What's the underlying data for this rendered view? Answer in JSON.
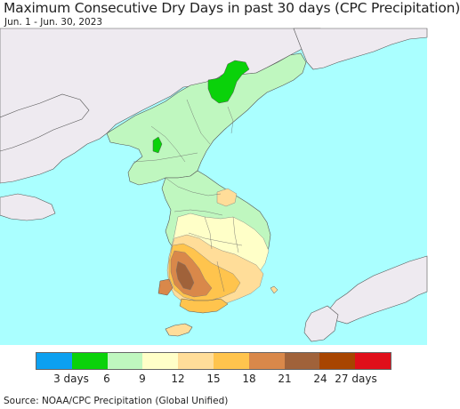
{
  "title": "Maximum Consecutive Dry Days in past 30 days (CPC Precipitation)",
  "subtitle": "Jun. 1 - Jun. 30, 2023",
  "source": "Source: NOAA/CPC Precipitation (Global Unified)",
  "colors": {
    "sea": "#aaffff",
    "neighbor_land": "#eeeaf0",
    "border": "#555555"
  },
  "legend": {
    "colors": [
      "#0ca0f0",
      "#0ad20a",
      "#bff7bf",
      "#ffffc8",
      "#ffdd99",
      "#ffc44d",
      "#d9884a",
      "#a0623a",
      "#a84500",
      "#e00f1a"
    ],
    "labels": [
      {
        "text": "3 days",
        "value": 3
      },
      {
        "text": "6",
        "value": 6
      },
      {
        "text": "9",
        "value": 9
      },
      {
        "text": "12",
        "value": 12
      },
      {
        "text": "15",
        "value": 15
      },
      {
        "text": "18",
        "value": 18
      },
      {
        "text": "21",
        "value": 21
      },
      {
        "text": "24",
        "value": 24
      },
      {
        "text": "27 days",
        "value": 27
      }
    ]
  }
}
